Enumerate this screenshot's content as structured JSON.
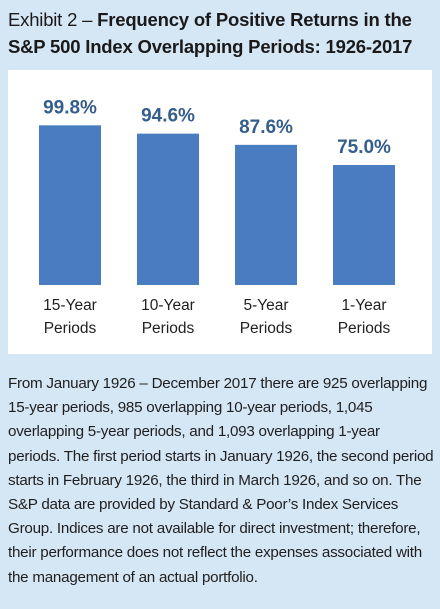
{
  "title": {
    "prefix": "Exhibit 2 – ",
    "main": "Frequency of Positive Returns in the S&P 500 Index Overlapping Periods: 1926-2017"
  },
  "chart_data": {
    "type": "bar",
    "categories": [
      [
        "15-Year",
        "Periods"
      ],
      [
        "10-Year",
        "Periods"
      ],
      [
        "5-Year",
        "Periods"
      ],
      [
        "1-Year",
        "Periods"
      ]
    ],
    "values": [
      99.8,
      94.6,
      87.6,
      75.0
    ],
    "data_labels": [
      "99.8%",
      "94.6%",
      "87.6%",
      "75.0%"
    ],
    "ylim": [
      0,
      100
    ],
    "grid": false,
    "legend": "none",
    "bar_color": "#4a7cc1",
    "label_color": "#345e8c"
  },
  "footnote": "From January 1926 – December 2017 there are 925 overlapping 15-year periods, 985 overlapping 10-year periods, 1,045 overlapping 5-year periods, and 1,093 overlapping 1-year periods. The first period starts in January 1926, the second period starts in February 1926, the third in March 1926, and so on. The S&P data are provided by Standard & Poor’s Index Services Group. Indices are not available for direct investment; therefore, their performance does not reflect the expenses associated with the management of an actual portfolio."
}
